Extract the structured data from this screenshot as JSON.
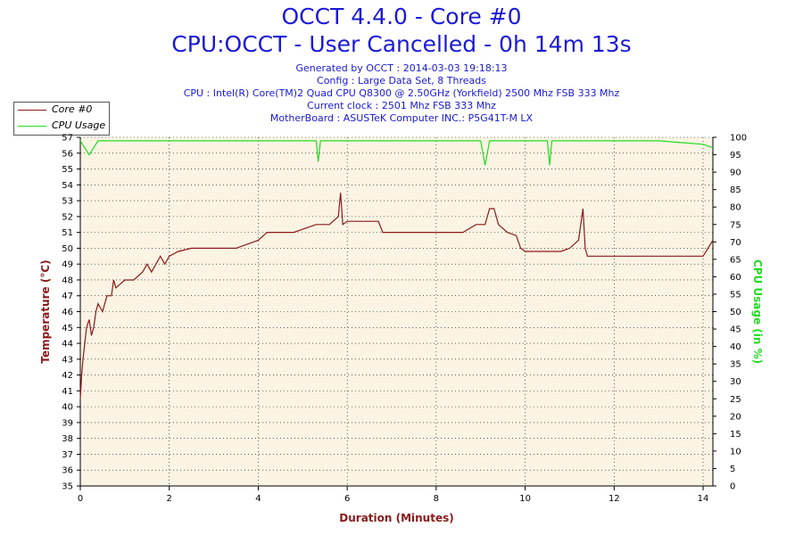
{
  "header": {
    "title": "OCCT 4.4.0 - Core #0",
    "subtitle": "CPU:OCCT - User Cancelled - 0h 14m 13s",
    "info_lines": [
      "Generated by OCCT : 2014-03-03 19:18:13",
      "Config : Large Data Set, 8 Threads",
      "CPU : Intel(R) Core(TM)2 Quad CPU Q8300 @ 2.50GHz (Yorkfield) 2500 Mhz FSB 333 Mhz",
      "Current clock : 2501 Mhz FSB 333 Mhz",
      "MotherBoard : ASUSTeK Computer INC.: P5G41T-M LX"
    ]
  },
  "colors": {
    "title": "#1a1ad6",
    "temperature": "#8b1a1a",
    "cpu_usage": "#22dd22",
    "plot_bg": "#fbf3e3",
    "grid": "#000000"
  },
  "chart_data": {
    "type": "line",
    "xlabel": "Duration (Minutes)",
    "ylabel_left": "Temperature (°C)",
    "ylabel_right": "CPU Usage (in %)",
    "x_range": [
      0,
      14.22
    ],
    "x_ticks": [
      0,
      2,
      4,
      6,
      8,
      10,
      12,
      14
    ],
    "y_left_range": [
      35,
      57
    ],
    "y_left_ticks": [
      35,
      36,
      37,
      38,
      39,
      40,
      41,
      42,
      43,
      44,
      45,
      46,
      47,
      48,
      49,
      50,
      51,
      52,
      53,
      54,
      55,
      56,
      57
    ],
    "y_right_range": [
      0,
      100
    ],
    "y_right_ticks": [
      0,
      5,
      10,
      15,
      20,
      25,
      30,
      35,
      40,
      45,
      50,
      55,
      60,
      65,
      70,
      75,
      80,
      85,
      90,
      95,
      100
    ],
    "grid": "dotted",
    "legend_position": "top-left",
    "series": [
      {
        "name": "Core #0",
        "axis": "left",
        "x": [
          0.0,
          0.03,
          0.06,
          0.1,
          0.14,
          0.2,
          0.25,
          0.3,
          0.35,
          0.4,
          0.5,
          0.6,
          0.7,
          0.75,
          0.8,
          1.0,
          1.2,
          1.4,
          1.5,
          1.6,
          1.7,
          1.8,
          1.9,
          2.0,
          2.2,
          2.5,
          3.0,
          3.5,
          3.8,
          4.0,
          4.2,
          4.5,
          4.8,
          5.0,
          5.3,
          5.6,
          5.8,
          5.85,
          5.9,
          6.0,
          6.2,
          6.5,
          6.7,
          6.8,
          7.0,
          7.3,
          7.6,
          8.0,
          8.3,
          8.6,
          8.9,
          9.1,
          9.2,
          9.3,
          9.4,
          9.6,
          9.8,
          9.9,
          10.0,
          10.2,
          10.5,
          10.8,
          11.0,
          11.2,
          11.3,
          11.35,
          11.4,
          11.6,
          12.0,
          12.5,
          12.8,
          13.0,
          13.3,
          13.6,
          14.0,
          14.22
        ],
        "y": [
          40.5,
          42.0,
          43.0,
          44.0,
          45.0,
          45.5,
          44.5,
          45.0,
          46.0,
          46.5,
          46.0,
          47.0,
          47.0,
          48.0,
          47.5,
          48.0,
          48.0,
          48.5,
          49.0,
          48.5,
          49.0,
          49.5,
          49.0,
          49.5,
          49.8,
          50.0,
          50.0,
          50.0,
          50.3,
          50.5,
          51.0,
          51.0,
          51.0,
          51.2,
          51.5,
          51.5,
          52.0,
          53.5,
          51.5,
          51.7,
          51.7,
          51.7,
          51.7,
          51.0,
          51.0,
          51.0,
          51.0,
          51.0,
          51.0,
          51.0,
          51.5,
          51.5,
          52.5,
          52.5,
          51.5,
          51.0,
          50.8,
          50.0,
          49.8,
          49.8,
          49.8,
          49.8,
          50.0,
          50.5,
          52.5,
          50.0,
          49.5,
          49.5,
          49.5,
          49.5,
          49.5,
          49.5,
          49.5,
          49.5,
          49.5,
          50.5
        ]
      },
      {
        "name": "CPU Usage",
        "axis": "right",
        "x": [
          0.0,
          0.2,
          0.4,
          1.0,
          2.0,
          3.0,
          4.0,
          5.0,
          5.3,
          5.35,
          5.4,
          6.0,
          7.0,
          8.0,
          9.0,
          9.1,
          9.2,
          10.0,
          10.5,
          10.55,
          10.6,
          11.0,
          12.0,
          13.0,
          14.0,
          14.22
        ],
        "y": [
          99,
          95,
          99,
          99,
          99,
          99,
          99,
          99,
          99,
          93,
          99,
          99,
          99,
          99,
          99,
          92,
          99,
          99,
          99,
          92,
          99,
          99,
          99,
          99,
          98,
          97
        ]
      }
    ]
  }
}
